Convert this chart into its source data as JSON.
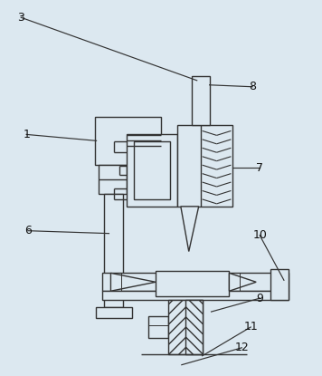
{
  "bg_color": "#dce8f0",
  "line_color": "#333333",
  "lw": 1.0,
  "figsize": [
    3.56,
    4.15
  ],
  "dpi": 100
}
